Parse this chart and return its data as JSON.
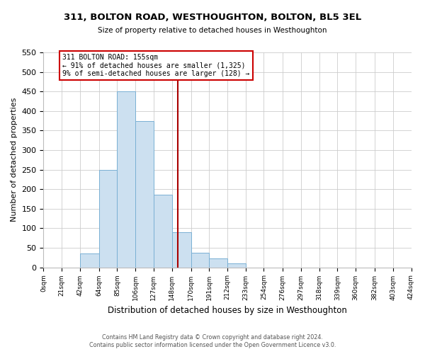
{
  "title": "311, BOLTON ROAD, WESTHOUGHTON, BOLTON, BL5 3EL",
  "subtitle": "Size of property relative to detached houses in Westhoughton",
  "xlabel": "Distribution of detached houses by size in Westhoughton",
  "ylabel": "Number of detached properties",
  "footnote1": "Contains HM Land Registry data © Crown copyright and database right 2024.",
  "footnote2": "Contains public sector information licensed under the Open Government Licence v3.0.",
  "bin_edges": [
    0,
    21,
    42,
    64,
    85,
    106,
    127,
    148,
    170,
    191,
    212,
    233,
    254,
    276,
    297,
    318,
    339,
    360,
    382,
    403,
    424
  ],
  "bin_counts": [
    0,
    0,
    35,
    250,
    450,
    375,
    185,
    90,
    38,
    22,
    10,
    0,
    0,
    0,
    0,
    0,
    0,
    0,
    0,
    0
  ],
  "bar_color": "#cce0f0",
  "bar_edge_color": "#7ab0d4",
  "vline_x": 155,
  "vline_color": "#aa0000",
  "annotation_title": "311 BOLTON ROAD: 155sqm",
  "annotation_line1": "← 91% of detached houses are smaller (1,325)",
  "annotation_line2": "9% of semi-detached houses are larger (128) →",
  "annotation_box_color": "#cc0000",
  "annotation_bg_color": "#ffffff",
  "tick_labels": [
    "0sqm",
    "21sqm",
    "42sqm",
    "64sqm",
    "85sqm",
    "106sqm",
    "127sqm",
    "148sqm",
    "170sqm",
    "191sqm",
    "212sqm",
    "233sqm",
    "254sqm",
    "276sqm",
    "297sqm",
    "318sqm",
    "339sqm",
    "360sqm",
    "382sqm",
    "403sqm",
    "424sqm"
  ],
  "ylim": [
    0,
    550
  ],
  "yticks": [
    0,
    50,
    100,
    150,
    200,
    250,
    300,
    350,
    400,
    450,
    500,
    550
  ],
  "grid_color": "#cccccc",
  "bg_color": "#ffffff",
  "figsize": [
    6.0,
    5.0
  ],
  "dpi": 100
}
